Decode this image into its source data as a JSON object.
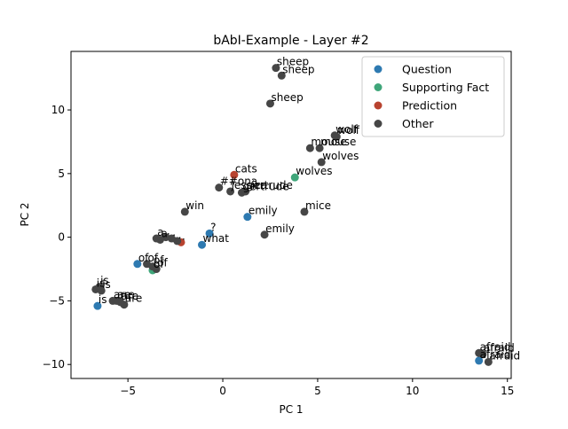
{
  "chart_data": {
    "type": "scatter",
    "title": "bAbI-Example - Layer #2",
    "xlabel": "PC 1",
    "ylabel": "PC 2",
    "xlim": [
      -8.0,
      15.2
    ],
    "ylim": [
      -11.1,
      14.6
    ],
    "xticks": [
      -5,
      0,
      5,
      10,
      15
    ],
    "yticks": [
      -10,
      -5,
      0,
      5,
      10
    ],
    "xtick_labels": [
      "−5",
      "0",
      "5",
      "10",
      "15"
    ],
    "ytick_labels": [
      "−10",
      "−5",
      "0",
      "5",
      "10"
    ],
    "grid": false,
    "legend_position": "top-right",
    "series": [
      {
        "name": "Question",
        "color": "#2e7ab1",
        "points": [
          {
            "x": -0.7,
            "y": 0.3,
            "label": "?"
          },
          {
            "x": -1.1,
            "y": -0.6,
            "label": "what"
          },
          {
            "x": 1.3,
            "y": 1.6,
            "label": "emily"
          },
          {
            "x": -4.5,
            "y": -2.1,
            "label": "of"
          },
          {
            "x": -6.6,
            "y": -5.4,
            "label": "is"
          },
          {
            "x": 13.5,
            "y": -9.7,
            "label": "afraid"
          }
        ]
      },
      {
        "name": "Supporting Fact",
        "color": "#3fa67a",
        "points": [
          {
            "x": 3.8,
            "y": 4.7,
            "label": "wolves"
          },
          {
            "x": -3.7,
            "y": -2.6,
            "label": "of"
          }
        ]
      },
      {
        "name": "Prediction",
        "color": "#b8432f",
        "points": [
          {
            "x": 0.6,
            "y": 4.9,
            "label": "cats"
          },
          {
            "x": -2.2,
            "y": -0.4,
            "label": "."
          }
        ]
      },
      {
        "name": "Other",
        "color": "#464646",
        "points": [
          {
            "x": 2.8,
            "y": 13.3,
            "label": "sheep"
          },
          {
            "x": 3.1,
            "y": 12.7,
            "label": "sheep"
          },
          {
            "x": 2.5,
            "y": 10.5,
            "label": "sheep"
          },
          {
            "x": 5.9,
            "y": 8.0,
            "label": "wolf"
          },
          {
            "x": 6.0,
            "y": 7.9,
            "label": "wolf"
          },
          {
            "x": 4.6,
            "y": 7.0,
            "label": "mouse"
          },
          {
            "x": 5.1,
            "y": 7.0,
            "label": "mouse"
          },
          {
            "x": 5.2,
            "y": 5.9,
            "label": "wolves"
          },
          {
            "x": -0.2,
            "y": 3.9,
            "label": "##ona"
          },
          {
            "x": 0.4,
            "y": 3.6,
            "label": "jessica"
          },
          {
            "x": 1.0,
            "y": 3.5,
            "label": "gertrude"
          },
          {
            "x": 1.2,
            "y": 3.6,
            "label": "gertrude"
          },
          {
            "x": 4.3,
            "y": 2.0,
            "label": "mice"
          },
          {
            "x": -2.0,
            "y": 2.0,
            "label": "win"
          },
          {
            "x": 2.2,
            "y": 0.2,
            "label": "emily"
          },
          {
            "x": -3.5,
            "y": -0.1,
            "label": "a"
          },
          {
            "x": -3.3,
            "y": -0.2,
            "label": "a"
          },
          {
            "x": -3.0,
            "y": 0.0,
            "label": "."
          },
          {
            "x": -2.7,
            "y": -0.1,
            "label": "."
          },
          {
            "x": -2.4,
            "y": -0.3,
            "label": "."
          },
          {
            "x": -4.0,
            "y": -2.1,
            "label": "of"
          },
          {
            "x": -3.7,
            "y": -2.3,
            "label": "of"
          },
          {
            "x": -3.5,
            "y": -2.5,
            "label": "of"
          },
          {
            "x": -6.7,
            "y": -4.1,
            "label": "is"
          },
          {
            "x": -6.5,
            "y": -3.9,
            "label": "is"
          },
          {
            "x": -6.4,
            "y": -4.2,
            "label": "is"
          },
          {
            "x": -5.8,
            "y": -5.0,
            "label": "are"
          },
          {
            "x": -5.6,
            "y": -5.0,
            "label": "are"
          },
          {
            "x": -5.4,
            "y": -5.1,
            "label": "are"
          },
          {
            "x": -5.2,
            "y": -5.3,
            "label": "are"
          },
          {
            "x": 13.5,
            "y": -9.1,
            "label": "afraid"
          },
          {
            "x": 13.7,
            "y": -9.2,
            "label": "afraid"
          },
          {
            "x": 14.0,
            "y": -9.8,
            "label": "afraid"
          }
        ]
      }
    ]
  }
}
